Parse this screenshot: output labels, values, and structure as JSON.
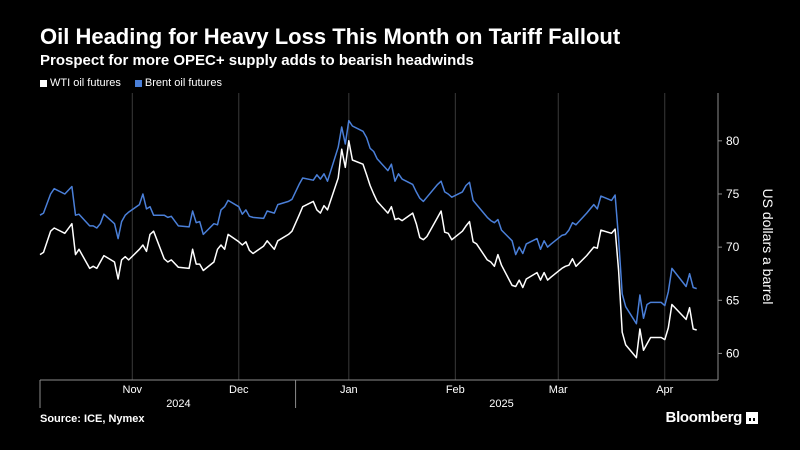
{
  "header": {
    "title": "Oil Heading for Heavy Loss This Month on Tariff Fallout",
    "subtitle": "Prospect for more OPEC+ supply adds to bearish headwinds"
  },
  "footer": {
    "source": "Source: ICE, Nymex",
    "brand": "Bloomberg"
  },
  "colors": {
    "background": "#000000",
    "wti": "#ffffff",
    "brent": "#4a7fd8",
    "grid": "#3a3a3a",
    "axis": "#8c8c8c"
  },
  "chart_data": {
    "type": "line",
    "title": "Oil Heading for Heavy Loss This Month on Tariff Fallout",
    "subtitle": "Prospect for more OPEC+ supply adds to bearish headwinds",
    "ylabel": "US dollars a barrel",
    "yaxis_side": "right",
    "ylim": [
      57.5,
      84.5
    ],
    "yticks": [
      60,
      65,
      70,
      75,
      80
    ],
    "xlim": [
      "2024-10-21",
      "2025-04-30"
    ],
    "xticks": [
      {
        "label": "Nov",
        "date": "2024-11-16"
      },
      {
        "label": "Dec",
        "date": "2024-12-16"
      },
      {
        "label": "Jan",
        "date": "2025-01-16"
      },
      {
        "label": "Feb",
        "date": "2025-02-15"
      },
      {
        "label": "Mar",
        "date": "2025-03-16"
      },
      {
        "label": "Apr",
        "date": "2025-04-15"
      }
    ],
    "year_labels": [
      {
        "label": "2024",
        "date": "2024-11-29"
      },
      {
        "label": "2025",
        "date": "2025-02-28"
      }
    ],
    "year_separator": "2025-01-01",
    "grid": "vertical",
    "legend_position": "top-left",
    "series": [
      {
        "name": "WTI oil futures",
        "color": "#ffffff",
        "points": [
          [
            "2024-10-21",
            69.3
          ],
          [
            "2024-10-22",
            69.5
          ],
          [
            "2024-10-24",
            71.5
          ],
          [
            "2024-10-25",
            71.8
          ],
          [
            "2024-10-28",
            71.3
          ],
          [
            "2024-10-30",
            72.2
          ],
          [
            "2024-10-31",
            69.3
          ],
          [
            "2024-11-01",
            69.8
          ],
          [
            "2024-11-04",
            68.0
          ],
          [
            "2024-11-05",
            68.2
          ],
          [
            "2024-11-06",
            68.0
          ],
          [
            "2024-11-07",
            68.6
          ],
          [
            "2024-11-08",
            69.2
          ],
          [
            "2024-11-11",
            68.6
          ],
          [
            "2024-11-12",
            67.0
          ],
          [
            "2024-11-13",
            68.8
          ],
          [
            "2024-11-14",
            69.1
          ],
          [
            "2024-11-15",
            68.8
          ],
          [
            "2024-11-18",
            69.8
          ],
          [
            "2024-11-19",
            70.2
          ],
          [
            "2024-11-20",
            69.6
          ],
          [
            "2024-11-21",
            71.2
          ],
          [
            "2024-11-22",
            71.5
          ],
          [
            "2024-11-25",
            68.9
          ],
          [
            "2024-11-26",
            68.6
          ],
          [
            "2024-11-27",
            68.8
          ],
          [
            "2024-11-29",
            68.1
          ],
          [
            "2024-12-02",
            68.0
          ],
          [
            "2024-12-03",
            69.8
          ],
          [
            "2024-12-04",
            68.4
          ],
          [
            "2024-12-05",
            68.4
          ],
          [
            "2024-12-06",
            67.8
          ],
          [
            "2024-12-09",
            68.6
          ],
          [
            "2024-12-10",
            69.8
          ],
          [
            "2024-12-11",
            70.2
          ],
          [
            "2024-12-12",
            69.8
          ],
          [
            "2024-12-13",
            71.2
          ],
          [
            "2024-12-16",
            70.5
          ],
          [
            "2024-12-17",
            70.2
          ],
          [
            "2024-12-18",
            70.5
          ],
          [
            "2024-12-19",
            69.7
          ],
          [
            "2024-12-20",
            69.4
          ],
          [
            "2024-12-23",
            70.1
          ],
          [
            "2024-12-24",
            70.6
          ],
          [
            "2024-12-26",
            69.8
          ],
          [
            "2024-12-27",
            70.6
          ],
          [
            "2024-12-30",
            71.2
          ],
          [
            "2024-12-31",
            71.5
          ],
          [
            "2025-01-02",
            73.0
          ],
          [
            "2025-01-03",
            73.8
          ],
          [
            "2025-01-06",
            74.3
          ],
          [
            "2025-01-07",
            73.5
          ],
          [
            "2025-01-08",
            73.2
          ],
          [
            "2025-01-09",
            73.9
          ],
          [
            "2025-01-10",
            73.5
          ],
          [
            "2025-01-13",
            76.5
          ],
          [
            "2025-01-14",
            79.2
          ],
          [
            "2025-01-15",
            77.5
          ],
          [
            "2025-01-16",
            80.0
          ],
          [
            "2025-01-17",
            78.2
          ],
          [
            "2025-01-20",
            77.8
          ],
          [
            "2025-01-21",
            76.8
          ],
          [
            "2025-01-22",
            75.8
          ],
          [
            "2025-01-23",
            75.0
          ],
          [
            "2025-01-24",
            74.3
          ],
          [
            "2025-01-27",
            73.2
          ],
          [
            "2025-01-28",
            73.8
          ],
          [
            "2025-01-29",
            72.6
          ],
          [
            "2025-01-30",
            72.7
          ],
          [
            "2025-01-31",
            72.5
          ],
          [
            "2025-02-03",
            73.2
          ],
          [
            "2025-02-04",
            72.2
          ],
          [
            "2025-02-05",
            70.9
          ],
          [
            "2025-02-06",
            70.7
          ],
          [
            "2025-02-07",
            71.0
          ],
          [
            "2025-02-10",
            72.8
          ],
          [
            "2025-02-11",
            73.4
          ],
          [
            "2025-02-12",
            71.4
          ],
          [
            "2025-02-13",
            71.3
          ],
          [
            "2025-02-14",
            70.7
          ],
          [
            "2025-02-17",
            71.5
          ],
          [
            "2025-02-18",
            72.0
          ],
          [
            "2025-02-19",
            72.4
          ],
          [
            "2025-02-20",
            70.5
          ],
          [
            "2025-02-21",
            70.3
          ],
          [
            "2025-02-24",
            68.8
          ],
          [
            "2025-02-25",
            68.6
          ],
          [
            "2025-02-26",
            68.2
          ],
          [
            "2025-02-27",
            69.3
          ],
          [
            "2025-02-28",
            68.3
          ],
          [
            "2025-03-03",
            66.4
          ],
          [
            "2025-03-04",
            66.3
          ],
          [
            "2025-03-05",
            66.9
          ],
          [
            "2025-03-06",
            66.2
          ],
          [
            "2025-03-07",
            67.0
          ],
          [
            "2025-03-10",
            67.6
          ],
          [
            "2025-03-11",
            66.9
          ],
          [
            "2025-03-12",
            67.6
          ],
          [
            "2025-03-13",
            66.9
          ],
          [
            "2025-03-14",
            67.2
          ],
          [
            "2025-03-17",
            68.0
          ],
          [
            "2025-03-18",
            68.2
          ],
          [
            "2025-03-19",
            68.3
          ],
          [
            "2025-03-20",
            68.9
          ],
          [
            "2025-03-21",
            68.2
          ],
          [
            "2025-03-24",
            69.2
          ],
          [
            "2025-03-25",
            69.6
          ],
          [
            "2025-03-26",
            70.0
          ],
          [
            "2025-03-27",
            69.9
          ],
          [
            "2025-03-28",
            71.6
          ],
          [
            "2025-03-31",
            71.3
          ],
          [
            "2025-04-01",
            71.7
          ],
          [
            "2025-04-02",
            67.8
          ],
          [
            "2025-04-03",
            62.0
          ],
          [
            "2025-04-04",
            60.8
          ],
          [
            "2025-04-07",
            59.6
          ],
          [
            "2025-04-08",
            62.3
          ],
          [
            "2025-04-09",
            60.3
          ],
          [
            "2025-04-10",
            60.9
          ],
          [
            "2025-04-11",
            61.5
          ],
          [
            "2025-04-14",
            61.5
          ],
          [
            "2025-04-15",
            61.3
          ],
          [
            "2025-04-16",
            62.4
          ],
          [
            "2025-04-17",
            64.6
          ],
          [
            "2025-04-21",
            63.2
          ],
          [
            "2025-04-22",
            64.3
          ],
          [
            "2025-04-23",
            62.3
          ],
          [
            "2025-04-24",
            62.2
          ]
        ]
      },
      {
        "name": "Brent oil futures",
        "color": "#4a7fd8",
        "points": [
          [
            "2024-10-21",
            73.0
          ],
          [
            "2024-10-22",
            73.2
          ],
          [
            "2024-10-24",
            75.0
          ],
          [
            "2024-10-25",
            75.5
          ],
          [
            "2024-10-28",
            75.0
          ],
          [
            "2024-10-30",
            75.7
          ],
          [
            "2024-10-31",
            73.0
          ],
          [
            "2024-11-01",
            73.1
          ],
          [
            "2024-11-04",
            72.0
          ],
          [
            "2024-11-05",
            72.0
          ],
          [
            "2024-11-06",
            71.8
          ],
          [
            "2024-11-07",
            72.2
          ],
          [
            "2024-11-08",
            73.1
          ],
          [
            "2024-11-11",
            72.2
          ],
          [
            "2024-11-12",
            70.8
          ],
          [
            "2024-11-13",
            72.4
          ],
          [
            "2024-11-14",
            73.0
          ],
          [
            "2024-11-15",
            73.3
          ],
          [
            "2024-11-18",
            74.0
          ],
          [
            "2024-11-19",
            75.0
          ],
          [
            "2024-11-20",
            73.6
          ],
          [
            "2024-11-21",
            73.8
          ],
          [
            "2024-11-22",
            73.0
          ],
          [
            "2024-11-25",
            73.0
          ],
          [
            "2024-11-26",
            72.8
          ],
          [
            "2024-11-27",
            72.9
          ],
          [
            "2024-11-29",
            72.0
          ],
          [
            "2024-12-02",
            71.9
          ],
          [
            "2024-12-03",
            73.4
          ],
          [
            "2024-12-04",
            72.3
          ],
          [
            "2024-12-05",
            72.4
          ],
          [
            "2024-12-06",
            71.2
          ],
          [
            "2024-12-09",
            72.2
          ],
          [
            "2024-12-10",
            72.1
          ],
          [
            "2024-12-11",
            73.5
          ],
          [
            "2024-12-12",
            73.8
          ],
          [
            "2024-12-13",
            74.4
          ],
          [
            "2024-12-16",
            73.8
          ],
          [
            "2024-12-17",
            73.1
          ],
          [
            "2024-12-18",
            73.5
          ],
          [
            "2024-12-19",
            72.9
          ],
          [
            "2024-12-20",
            72.8
          ],
          [
            "2024-12-23",
            72.7
          ],
          [
            "2024-12-24",
            73.4
          ],
          [
            "2024-12-26",
            73.2
          ],
          [
            "2024-12-27",
            74.0
          ],
          [
            "2024-12-30",
            74.3
          ],
          [
            "2024-12-31",
            74.5
          ],
          [
            "2025-01-02",
            75.9
          ],
          [
            "2025-01-03",
            76.5
          ],
          [
            "2025-01-06",
            76.3
          ],
          [
            "2025-01-07",
            76.8
          ],
          [
            "2025-01-08",
            76.4
          ],
          [
            "2025-01-09",
            76.9
          ],
          [
            "2025-01-10",
            76.2
          ],
          [
            "2025-01-13",
            79.4
          ],
          [
            "2025-01-14",
            81.3
          ],
          [
            "2025-01-15",
            79.7
          ],
          [
            "2025-01-16",
            81.9
          ],
          [
            "2025-01-17",
            81.4
          ],
          [
            "2025-01-20",
            80.9
          ],
          [
            "2025-01-21",
            80.3
          ],
          [
            "2025-01-22",
            79.3
          ],
          [
            "2025-01-23",
            79.0
          ],
          [
            "2025-01-24",
            78.3
          ],
          [
            "2025-01-27",
            77.2
          ],
          [
            "2025-01-28",
            77.8
          ],
          [
            "2025-01-29",
            76.2
          ],
          [
            "2025-01-30",
            76.9
          ],
          [
            "2025-01-31",
            76.4
          ],
          [
            "2025-02-03",
            75.9
          ],
          [
            "2025-02-04",
            75.2
          ],
          [
            "2025-02-05",
            74.6
          ],
          [
            "2025-02-06",
            74.3
          ],
          [
            "2025-02-07",
            74.7
          ],
          [
            "2025-02-10",
            75.9
          ],
          [
            "2025-02-11",
            76.2
          ],
          [
            "2025-02-12",
            75.2
          ],
          [
            "2025-02-13",
            75.0
          ],
          [
            "2025-02-14",
            74.7
          ],
          [
            "2025-02-17",
            75.2
          ],
          [
            "2025-02-18",
            75.8
          ],
          [
            "2025-02-19",
            76.1
          ],
          [
            "2025-02-20",
            74.4
          ],
          [
            "2025-02-21",
            74.0
          ],
          [
            "2025-02-24",
            72.8
          ],
          [
            "2025-02-25",
            72.5
          ],
          [
            "2025-02-26",
            72.3
          ],
          [
            "2025-02-27",
            72.6
          ],
          [
            "2025-02-28",
            71.6
          ],
          [
            "2025-03-03",
            70.6
          ],
          [
            "2025-03-04",
            69.3
          ],
          [
            "2025-03-05",
            70.0
          ],
          [
            "2025-03-06",
            69.4
          ],
          [
            "2025-03-07",
            70.3
          ],
          [
            "2025-03-10",
            70.8
          ],
          [
            "2025-03-11",
            69.8
          ],
          [
            "2025-03-12",
            70.6
          ],
          [
            "2025-03-13",
            70.0
          ],
          [
            "2025-03-14",
            70.3
          ],
          [
            "2025-03-17",
            71.1
          ],
          [
            "2025-03-18",
            71.2
          ],
          [
            "2025-03-19",
            71.6
          ],
          [
            "2025-03-20",
            72.3
          ],
          [
            "2025-03-21",
            72.1
          ],
          [
            "2025-03-24",
            73.2
          ],
          [
            "2025-03-25",
            73.6
          ],
          [
            "2025-03-26",
            74.0
          ],
          [
            "2025-03-27",
            73.6
          ],
          [
            "2025-03-28",
            74.8
          ],
          [
            "2025-03-31",
            74.4
          ],
          [
            "2025-04-01",
            74.9
          ],
          [
            "2025-04-02",
            70.8
          ],
          [
            "2025-04-03",
            65.6
          ],
          [
            "2025-04-04",
            64.4
          ],
          [
            "2025-04-07",
            62.8
          ],
          [
            "2025-04-08",
            65.5
          ],
          [
            "2025-04-09",
            63.3
          ],
          [
            "2025-04-10",
            64.6
          ],
          [
            "2025-04-11",
            64.8
          ],
          [
            "2025-04-14",
            64.8
          ],
          [
            "2025-04-15",
            64.5
          ],
          [
            "2025-04-16",
            65.8
          ],
          [
            "2025-04-17",
            68.0
          ],
          [
            "2025-04-21",
            66.3
          ],
          [
            "2025-04-22",
            67.5
          ],
          [
            "2025-04-23",
            66.2
          ],
          [
            "2025-04-24",
            66.1
          ]
        ]
      }
    ]
  }
}
